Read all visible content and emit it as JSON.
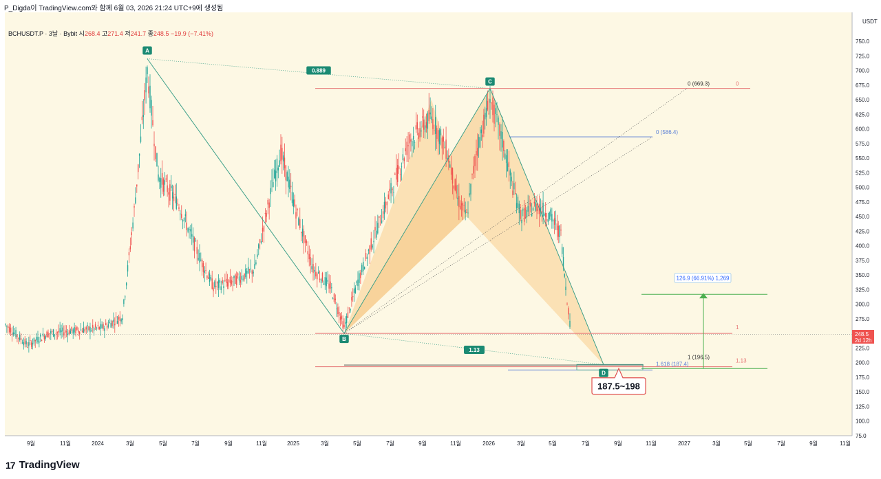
{
  "header": {
    "publisher_line": "P_Digda이 TradingView.com와 함께 6월 03, 2026 21:24 UTC+9에 생성됨"
  },
  "symbol": {
    "name": "BCHUSDT.P · 3날 · Bybit",
    "open_label": "시",
    "open": "268.4",
    "high_label": "고",
    "high": "271.4",
    "low_label": "저",
    "low": "241.7",
    "close_label": "종",
    "close": "248.5",
    "change": "−19.9 (−7.41%)"
  },
  "price_axis": {
    "currency": "USDT",
    "ticks": [
      "750.0",
      "725.0",
      "700.0",
      "675.0",
      "650.0",
      "625.0",
      "600.0",
      "575.0",
      "550.0",
      "525.0",
      "500.0",
      "475.0",
      "450.0",
      "425.0",
      "400.0",
      "375.0",
      "350.0",
      "325.0",
      "300.0",
      "275.0",
      "250.0",
      "225.0",
      "200.0",
      "175.0",
      "150.0",
      "125.0",
      "100.0",
      "75.0"
    ],
    "last_price": "248.5",
    "countdown": "2d 12h"
  },
  "time_axis": {
    "ticks": [
      "9월",
      "11월",
      "2024",
      "3월",
      "5월",
      "7월",
      "9월",
      "11월",
      "2025",
      "3월",
      "5월",
      "7월",
      "9월",
      "11월",
      "2026",
      "3월",
      "5월",
      "7월",
      "9월",
      "11월",
      "2027",
      "3월",
      "5월",
      "7월",
      "9월",
      "11월"
    ]
  },
  "pattern": {
    "points": [
      "A",
      "B",
      "C",
      "D"
    ],
    "ratio_ac": "0.889",
    "ratio_bd": "1.13",
    "label_c0": "0 (669.3)",
    "label_c0_red": "0",
    "label_586": "0 (586.4)",
    "label_1_red": "1",
    "label_113_red": "1.13",
    "label_1_196": "1 (196.5)",
    "label_1618": "1.618 (187.4)",
    "target_range": "187.5~198",
    "projection_label": "126.9 (66.91%) 1,269"
  },
  "colors": {
    "background": "#fdf8e4",
    "up": "#26a69a",
    "down": "#ef5350",
    "pattern_fill": "#f9d9a6",
    "pattern_line": "#3fa08a",
    "fib_red": "#e57373",
    "fib_blue": "#5b7fd6",
    "projection": "#4caf50"
  },
  "chart_data": {
    "type": "candlestick",
    "symbol": "BCHUSDT.P",
    "interval": "3날",
    "exchange": "Bybit",
    "ylim": [
      75,
      750
    ],
    "pivots": [
      {
        "name": "A",
        "date": "2024-04",
        "price": 720
      },
      {
        "name": "B",
        "date": "2025-04",
        "price": 250
      },
      {
        "name": "C",
        "date": "2026-01",
        "price": 669.3
      },
      {
        "name": "D",
        "date": "2026-08",
        "price": 196.5
      }
    ],
    "harmonic_ratios": {
      "AC": 0.889,
      "BD": 1.13
    },
    "fib_levels": [
      {
        "label": "0 (669.3)",
        "price": 669.3
      },
      {
        "label": "0 (586.4)",
        "price": 586.4
      },
      {
        "label": "1",
        "price": 250
      },
      {
        "label": "1 (196.5)",
        "price": 196.5
      },
      {
        "label": "1.618 (187.4)",
        "price": 187.4
      },
      {
        "label": "1.13",
        "price": 193
      }
    ],
    "projection": {
      "from": 190,
      "to": 316.9,
      "label": "126.9 (66.91%) 1,269"
    },
    "target_zone": "187.5~198",
    "last": {
      "open": 268.4,
      "high": 271.4,
      "low": 241.7,
      "close": 248.5
    }
  }
}
